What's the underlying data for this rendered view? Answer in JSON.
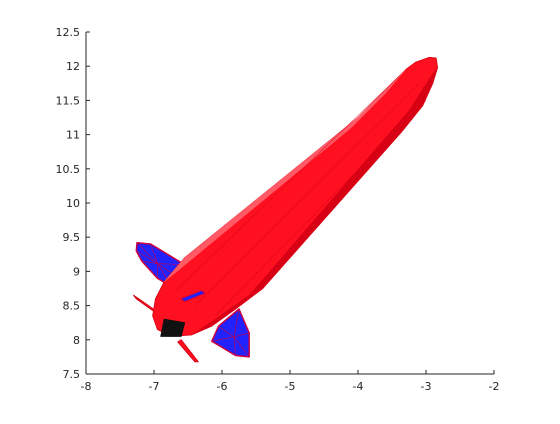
{
  "chart_data": {
    "type": "3d-surface",
    "title": "",
    "xlabel": "",
    "ylabel": "",
    "xlim": [
      -8,
      -2
    ],
    "ylim": [
      7.5,
      12.5
    ],
    "x_ticks": [
      -8,
      -7,
      -6,
      -5,
      -4,
      -3,
      -2
    ],
    "x_tick_labels": [
      "-8",
      "-7",
      "-6",
      "-5",
      "-4",
      "-3",
      "-2"
    ],
    "y_ticks": [
      7.5,
      8,
      8.5,
      9,
      9.5,
      10,
      10.5,
      11,
      11.5,
      12,
      12.5
    ],
    "y_tick_labels": [
      "7.5",
      "8",
      "8.5",
      "9",
      "9.5",
      "10",
      "10.5",
      "11",
      "11.5",
      "12",
      "12.5"
    ],
    "grid": false,
    "box": false,
    "object": "rocket",
    "colors": {
      "body": "#ff1020",
      "body_shade": "#d80014",
      "body_highlight": "#ff5a66",
      "fins": "#2222ff",
      "fin_edges": "#cc0040",
      "nozzle": "#111111",
      "axis": "#262626"
    },
    "rocket_parts": {
      "body_outline": [
        [
          -6.75,
          8.05
        ],
        [
          -6.95,
          8.15
        ],
        [
          -7.02,
          8.35
        ],
        [
          -6.98,
          8.6
        ],
        [
          -6.85,
          8.85
        ],
        [
          -6.55,
          9.2
        ],
        [
          -4.0,
          11.25
        ],
        [
          -3.55,
          11.7
        ],
        [
          -3.3,
          11.95
        ],
        [
          -3.15,
          12.06
        ],
        [
          -2.95,
          12.13
        ],
        [
          -2.85,
          12.12
        ],
        [
          -2.83,
          11.98
        ],
        [
          -2.9,
          11.75
        ],
        [
          -3.05,
          11.42
        ],
        [
          -3.35,
          11.05
        ],
        [
          -5.4,
          8.75
        ],
        [
          -5.8,
          8.45
        ],
        [
          -6.15,
          8.2
        ],
        [
          -6.45,
          8.07
        ]
      ],
      "body_shadow": [
        [
          -6.45,
          8.07
        ],
        [
          -6.15,
          8.2
        ],
        [
          -5.8,
          8.45
        ],
        [
          -5.4,
          8.75
        ],
        [
          -3.35,
          11.05
        ],
        [
          -3.05,
          11.42
        ],
        [
          -2.9,
          11.75
        ],
        [
          -2.83,
          11.98
        ],
        [
          -2.95,
          11.82
        ],
        [
          -3.25,
          11.35
        ],
        [
          -3.6,
          10.95
        ],
        [
          -5.6,
          8.65
        ],
        [
          -6.1,
          8.3
        ]
      ],
      "body_highlight": [
        [
          -6.85,
          8.85
        ],
        [
          -6.55,
          9.2
        ],
        [
          -4.0,
          11.25
        ],
        [
          -3.55,
          11.7
        ],
        [
          -3.3,
          11.95
        ],
        [
          -3.6,
          11.6
        ],
        [
          -4.1,
          11.1
        ],
        [
          -6.6,
          9.05
        ]
      ],
      "fin_upper": [
        [
          -7.25,
          9.42
        ],
        [
          -7.05,
          9.4
        ],
        [
          -6.55,
          9.1
        ],
        [
          -6.55,
          8.85
        ],
        [
          -6.75,
          8.78
        ],
        [
          -6.95,
          8.9
        ],
        [
          -7.18,
          9.15
        ],
        [
          -7.26,
          9.3
        ]
      ],
      "fin_lower": [
        [
          -6.05,
          8.2
        ],
        [
          -5.75,
          8.45
        ],
        [
          -5.6,
          8.1
        ],
        [
          -5.6,
          7.75
        ],
        [
          -5.8,
          7.77
        ],
        [
          -6.15,
          7.98
        ]
      ],
      "fin_thin_upper": [
        [
          -7.3,
          8.65
        ],
        [
          -7.26,
          8.6
        ],
        [
          -6.95,
          8.38
        ],
        [
          -6.98,
          8.43
        ]
      ],
      "fin_thin_lower": [
        [
          -6.6,
          8.0
        ],
        [
          -6.35,
          7.68
        ],
        [
          -6.4,
          7.68
        ],
        [
          -6.65,
          7.97
        ]
      ],
      "nozzle": [
        [
          -6.9,
          8.05
        ],
        [
          -6.6,
          8.05
        ],
        [
          -6.55,
          8.25
        ],
        [
          -6.85,
          8.3
        ]
      ],
      "eye": [
        [
          -6.6,
          8.6
        ],
        [
          -6.3,
          8.72
        ],
        [
          -6.25,
          8.68
        ],
        [
          -6.55,
          8.56
        ]
      ]
    }
  }
}
